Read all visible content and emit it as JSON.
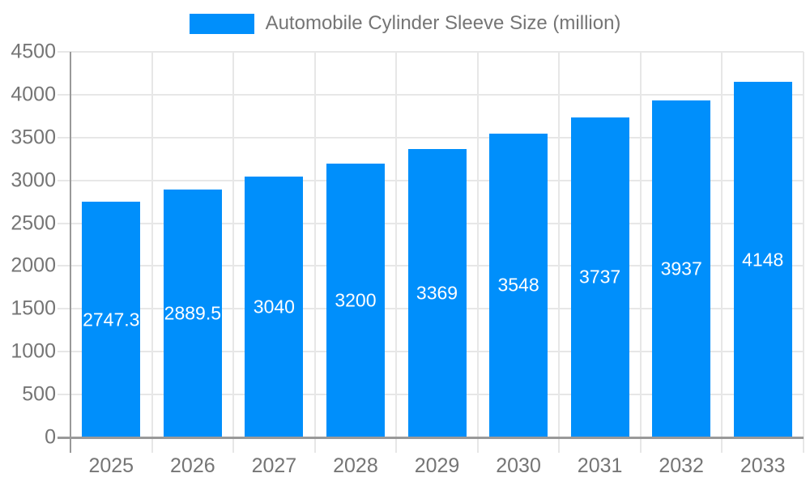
{
  "legend": {
    "label": "Automobile Cylinder Sleeve Size (million)",
    "swatch_color": "#008FFB"
  },
  "chart_data": {
    "type": "bar",
    "title": "Automobile Cylinder Sleeve Size (million)",
    "categories": [
      "2025",
      "2026",
      "2027",
      "2028",
      "2029",
      "2030",
      "2031",
      "2032",
      "2033"
    ],
    "values": [
      2747.3,
      2889.5,
      3040,
      3200,
      3369,
      3548,
      3737,
      3937,
      4148
    ],
    "value_labels": [
      "2747.3",
      "2889.5",
      "3040",
      "3200",
      "3369",
      "3548",
      "3737",
      "3937",
      "4148"
    ],
    "series_name": "Automobile Cylinder Sleeve Size (million)",
    "xlabel": "",
    "ylabel": "",
    "ylim": [
      0,
      4500
    ],
    "y_ticks": [
      0,
      500,
      1000,
      1500,
      2000,
      2500,
      3000,
      3500,
      4000,
      4500
    ],
    "grid": true,
    "legend_position": "top",
    "colors": {
      "bar": "#008FFB",
      "bar_label_text": "#ffffff",
      "axis_label_text": "#757575",
      "gridline": "#e7e7e7",
      "axis_line": "#999999"
    }
  }
}
